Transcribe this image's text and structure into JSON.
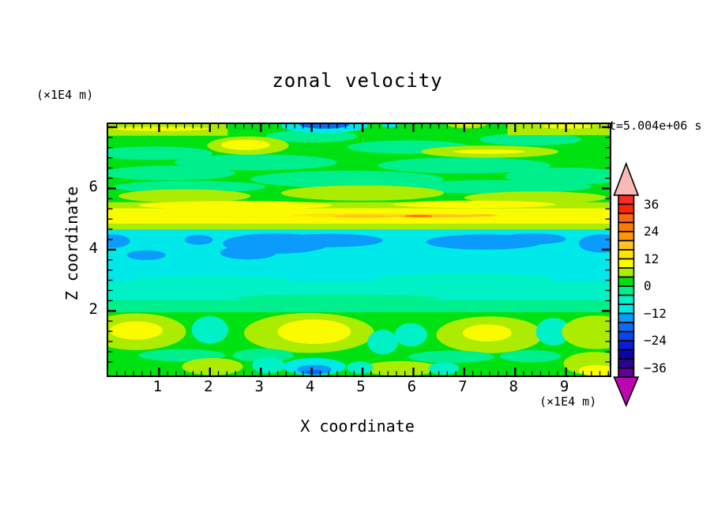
{
  "title": "zonal velocity",
  "annotations": {
    "time_label": "t=5.004e+06 s",
    "left_units_label": "(×1E4 m)",
    "bottom_units_label": "(×1E4 m)"
  },
  "axes": {
    "x": {
      "label": "X coordinate",
      "range": [
        0,
        9.86
      ],
      "major_ticks": [
        1,
        2,
        3,
        4,
        5,
        6,
        7,
        8,
        9
      ],
      "tick_labels": [
        "1",
        "2",
        "3",
        "4",
        "5",
        "6",
        "7",
        "8",
        "9"
      ],
      "minor_interval": 0.1666667
    },
    "z": {
      "label": "Z coordinate",
      "range": [
        -0.11,
        8.1
      ],
      "major_ticks": [
        2,
        4,
        6,
        8
      ],
      "tick_labels": [
        "2",
        "4",
        "6"
      ],
      "labeled_values": [
        2,
        4,
        6
      ],
      "minor_interval": 0.3333333
    }
  },
  "colorbar": {
    "tick_labels": [
      "36",
      "24",
      "12",
      "0",
      "−12",
      "−24",
      "−36"
    ],
    "over_arrow_color": "#F9B8B6",
    "under_arrow_color": "#BC06B4",
    "levels_top_to_bottom": [
      {
        "range": "36..40",
        "color": "#F92B22"
      },
      {
        "range": "32..36",
        "color": "#FD2800"
      },
      {
        "range": "28..32",
        "color": "#FF640E"
      },
      {
        "range": "24..28",
        "color": "#FF7B00"
      },
      {
        "range": "20..24",
        "color": "#FF9800"
      },
      {
        "range": "16..20",
        "color": "#FFC51E"
      },
      {
        "range": "12..16",
        "color": "#FFE400"
      },
      {
        "range": "8..12",
        "color": "#FBFB00"
      },
      {
        "range": "4..8",
        "color": "#ACEC00"
      },
      {
        "range": "0..4",
        "color": "#00E112"
      },
      {
        "range": "-4..0",
        "color": "#00EF8D"
      },
      {
        "range": "-8..-4",
        "color": "#00F1C6"
      },
      {
        "range": "-12..-8",
        "color": "#00E9E9"
      },
      {
        "range": "-16..-12",
        "color": "#0A9BFB"
      },
      {
        "range": "-20..-16",
        "color": "#0B6CF3"
      },
      {
        "range": "-24..-20",
        "color": "#0845EA"
      },
      {
        "range": "-28..-24",
        "color": "#0A1DD5"
      },
      {
        "range": "-32..-28",
        "color": "#0A04AE"
      },
      {
        "range": "-36..-32",
        "color": "#2B0390"
      },
      {
        "range": "-40..-36",
        "color": "#5E0292"
      }
    ]
  },
  "chart_data": {
    "type": "heatmap",
    "subtype": "filled-contour tone plot",
    "title": "zonal velocity",
    "xlabel": "X coordinate (×1E4 m)",
    "ylabel": "Z coordinate (×1E4 m)",
    "time_annotation": "t=5.004e+06 s",
    "x_range": [
      0,
      9.86
    ],
    "z_range": [
      -0.11,
      8.1
    ],
    "contour_interval": 4,
    "value_range_shown": [
      -40,
      40
    ],
    "bands_top_to_bottom": [
      {
        "z": "5.9-8.1",
        "value": "0..4 (green) with -4..0 streaks; 4..12 patches near z≈7.4 and along top edge; small -12..-20 blue spot at top centre x≈4.2"
      },
      {
        "z": "4.7-5.9",
        "value": "4..16 chartreuse/yellow jet band with 16..24 orange streaks near z≈5.1"
      },
      {
        "z": "2.9-4.7",
        "value": "-12..-8 cyan band with -16..-12 blue blobs near z≈4.2"
      },
      {
        "z": "2.0-2.9",
        "value": "-8..0 turquoise to spring-green transition"
      },
      {
        "z": "0-2.0",
        "value": "green with cells: 4..12 chartreuse/yellow cores at x≈0.5,4,7.5,9.6 and -8..-4 turquoise troughs; -12..-20 blue spot at bottom x≈4"
      }
    ],
    "palette": {
      "green": {
        "color": "#00E112",
        "value": "0..4"
      },
      "spring": {
        "color": "#00EF8D",
        "value": "-4..0"
      },
      "turq": {
        "color": "#00F1C6",
        "value": "-8..-4"
      },
      "cyan": {
        "color": "#00E9E9",
        "value": "-12..-8"
      },
      "blue": {
        "color": "#0A9BFB",
        "value": "-16..-12"
      },
      "dblue": {
        "color": "#0B6CF3",
        "value": "-20..-16"
      },
      "chart": {
        "color": "#ACEC00",
        "value": "4..8"
      },
      "yellow": {
        "color": "#FBFB00",
        "value": "8..12"
      },
      "lemon": {
        "color": "#FFE400",
        "value": "12..16"
      },
      "amber": {
        "color": "#FFC51E",
        "value": "16..20"
      },
      "redor": {
        "color": "#FF640E",
        "value": "28..32"
      }
    },
    "layers": [
      {
        "s": "r",
        "x": 0,
        "z": 8.1,
        "w": 9.86,
        "h": 8.21,
        "c": "green"
      },
      {
        "s": "e",
        "x": 0.9,
        "z": 7.15,
        "rx": 1.15,
        "rz": 0.22,
        "c": "spring"
      },
      {
        "s": "e",
        "x": 2.9,
        "z": 6.85,
        "rx": 1.6,
        "rz": 0.26,
        "c": "spring"
      },
      {
        "s": "e",
        "x": 1.2,
        "z": 6.5,
        "rx": 1.3,
        "rz": 0.24,
        "c": "spring"
      },
      {
        "s": "e",
        "x": 4.7,
        "z": 6.3,
        "rx": 1.9,
        "rz": 0.28,
        "c": "spring"
      },
      {
        "s": "e",
        "x": 7.0,
        "z": 6.75,
        "rx": 1.7,
        "rz": 0.26,
        "c": "spring"
      },
      {
        "s": "e",
        "x": 9.0,
        "z": 6.4,
        "rx": 1.2,
        "rz": 0.28,
        "c": "spring"
      },
      {
        "s": "e",
        "x": 5.9,
        "z": 7.35,
        "rx": 1.2,
        "rz": 0.22,
        "c": "spring"
      },
      {
        "s": "e",
        "x": 8.3,
        "z": 7.6,
        "rx": 1.0,
        "rz": 0.2,
        "c": "spring"
      },
      {
        "s": "e",
        "x": 1.6,
        "z": 6.05,
        "rx": 1.5,
        "rz": 0.2,
        "c": "spring"
      },
      {
        "s": "e",
        "x": 7.6,
        "z": 6.05,
        "rx": 1.9,
        "rz": 0.22,
        "c": "spring"
      },
      {
        "s": "e",
        "x": 4.0,
        "z": 7.7,
        "rx": 0.9,
        "rz": 0.2,
        "c": "spring"
      },
      {
        "s": "r",
        "x": 0,
        "z": 8.1,
        "w": 2.35,
        "h": 0.38,
        "c": "chart"
      },
      {
        "s": "e",
        "x": 1.05,
        "z": 7.95,
        "rx": 0.95,
        "rz": 0.07,
        "c": "yellow"
      },
      {
        "s": "r",
        "x": 7.85,
        "z": 8.1,
        "w": 2.01,
        "h": 0.36,
        "c": "chart"
      },
      {
        "s": "e",
        "x": 9.05,
        "z": 8.02,
        "rx": 0.5,
        "rz": 0.07,
        "c": "yellow"
      },
      {
        "s": "e",
        "x": 7.05,
        "z": 8.08,
        "rx": 0.38,
        "rz": 0.12,
        "c": "chart"
      },
      {
        "s": "e",
        "x": 7.03,
        "z": 8.1,
        "rx": 0.2,
        "rz": 0.06,
        "c": "yellow"
      },
      {
        "s": "e",
        "x": 2.75,
        "z": 7.4,
        "rx": 0.8,
        "rz": 0.3,
        "c": "chart"
      },
      {
        "s": "e",
        "x": 2.7,
        "z": 7.42,
        "rx": 0.48,
        "rz": 0.17,
        "c": "yellow"
      },
      {
        "s": "e",
        "x": 7.5,
        "z": 7.2,
        "rx": 1.35,
        "rz": 0.2,
        "c": "chart"
      },
      {
        "s": "e",
        "x": 7.5,
        "z": 7.2,
        "rx": 0.7,
        "rz": 0.07,
        "c": "yellow"
      },
      {
        "s": "e",
        "x": 4.25,
        "z": 8.05,
        "rx": 0.85,
        "rz": 0.24,
        "c": "cyan"
      },
      {
        "s": "e",
        "x": 4.25,
        "z": 8.1,
        "rx": 0.5,
        "rz": 0.15,
        "c": "dblue"
      },
      {
        "s": "e",
        "x": 5.55,
        "z": 8.07,
        "rx": 0.16,
        "rz": 0.08,
        "c": "cyan"
      },
      {
        "s": "e",
        "x": 1.5,
        "z": 5.75,
        "rx": 1.3,
        "rz": 0.22,
        "c": "chart"
      },
      {
        "s": "e",
        "x": 5.0,
        "z": 5.85,
        "rx": 1.6,
        "rz": 0.25,
        "c": "chart"
      },
      {
        "s": "e",
        "x": 8.4,
        "z": 5.7,
        "rx": 1.4,
        "rz": 0.2,
        "c": "chart"
      },
      {
        "s": "r",
        "x": 0,
        "z": 5.55,
        "w": 9.86,
        "h": 0.9,
        "c": "chart"
      },
      {
        "s": "e",
        "x": 2.5,
        "z": 5.45,
        "rx": 1.9,
        "rz": 0.14,
        "c": "yellow"
      },
      {
        "s": "e",
        "x": 7.2,
        "z": 5.48,
        "rx": 1.6,
        "rz": 0.12,
        "c": "yellow"
      },
      {
        "s": "r",
        "x": 0,
        "z": 5.35,
        "w": 9.86,
        "h": 0.5,
        "c": "yellow"
      },
      {
        "s": "e",
        "x": 5.3,
        "z": 5.12,
        "rx": 1.7,
        "rz": 0.07,
        "c": "lemon"
      },
      {
        "s": "e",
        "x": 5.0,
        "z": 5.09,
        "rx": 0.6,
        "rz": 0.05,
        "c": "amber"
      },
      {
        "s": "e",
        "x": 6.5,
        "z": 5.1,
        "rx": 0.95,
        "rz": 0.05,
        "c": "amber"
      },
      {
        "s": "e",
        "x": 6.1,
        "z": 5.1,
        "rx": 0.28,
        "rz": 0.035,
        "c": "redor"
      },
      {
        "s": "e",
        "x": 7.35,
        "z": 5.12,
        "rx": 0.3,
        "rz": 0.04,
        "c": "amber"
      },
      {
        "s": "r",
        "x": 0,
        "z": 4.66,
        "w": 9.86,
        "h": 1.72,
        "c": "cyan"
      },
      {
        "s": "e",
        "x": 2.0,
        "z": 2.98,
        "rx": 1.6,
        "rz": 0.16,
        "c": "turq"
      },
      {
        "s": "e",
        "x": 7.0,
        "z": 3.05,
        "rx": 1.8,
        "rz": 0.18,
        "c": "turq"
      },
      {
        "s": "r",
        "x": 0,
        "z": 2.94,
        "w": 9.86,
        "h": 0.6,
        "c": "turq"
      },
      {
        "s": "r",
        "x": 0,
        "z": 2.34,
        "w": 9.86,
        "h": 0.38,
        "c": "spring"
      },
      {
        "s": "e",
        "x": 4.5,
        "z": 2.42,
        "rx": 2.0,
        "rz": 0.12,
        "c": "spring"
      },
      {
        "s": "e",
        "x": 0.08,
        "z": 4.28,
        "rx": 0.35,
        "rz": 0.22,
        "c": "blue"
      },
      {
        "s": "e",
        "x": 0.75,
        "z": 3.82,
        "rx": 0.38,
        "rz": 0.16,
        "c": "blue"
      },
      {
        "s": "e",
        "x": 1.78,
        "z": 4.32,
        "rx": 0.28,
        "rz": 0.16,
        "c": "blue"
      },
      {
        "s": "e",
        "x": 3.3,
        "z": 4.2,
        "rx": 1.05,
        "rz": 0.33,
        "c": "blue"
      },
      {
        "s": "e",
        "x": 4.35,
        "z": 4.3,
        "rx": 1.05,
        "rz": 0.22,
        "c": "blue"
      },
      {
        "s": "e",
        "x": 2.75,
        "z": 3.9,
        "rx": 0.55,
        "rz": 0.22,
        "c": "blue"
      },
      {
        "s": "e",
        "x": 7.4,
        "z": 4.25,
        "rx": 1.15,
        "rz": 0.25,
        "c": "blue"
      },
      {
        "s": "e",
        "x": 8.35,
        "z": 4.35,
        "rx": 0.65,
        "rz": 0.18,
        "c": "blue"
      },
      {
        "s": "e",
        "x": 9.7,
        "z": 4.2,
        "rx": 0.45,
        "rz": 0.3,
        "c": "blue"
      },
      {
        "s": "e",
        "x": 0.55,
        "z": 1.32,
        "rx": 0.98,
        "rz": 0.6,
        "c": "chart"
      },
      {
        "s": "e",
        "x": 0.55,
        "z": 1.36,
        "rx": 0.52,
        "rz": 0.3,
        "c": "yellow"
      },
      {
        "s": "e",
        "x": 2.0,
        "z": 1.38,
        "rx": 0.36,
        "rz": 0.45,
        "c": "turq"
      },
      {
        "s": "e",
        "x": 3.95,
        "z": 1.28,
        "rx": 1.28,
        "rz": 0.65,
        "c": "chart"
      },
      {
        "s": "e",
        "x": 4.05,
        "z": 1.32,
        "rx": 0.72,
        "rz": 0.4,
        "c": "yellow"
      },
      {
        "s": "e",
        "x": 5.4,
        "z": 0.98,
        "rx": 0.3,
        "rz": 0.4,
        "c": "turq"
      },
      {
        "s": "e",
        "x": 5.95,
        "z": 1.22,
        "rx": 0.32,
        "rz": 0.38,
        "c": "turq"
      },
      {
        "s": "e",
        "x": 7.5,
        "z": 1.22,
        "rx": 1.05,
        "rz": 0.6,
        "c": "chart"
      },
      {
        "s": "e",
        "x": 7.45,
        "z": 1.28,
        "rx": 0.48,
        "rz": 0.28,
        "c": "yellow"
      },
      {
        "s": "e",
        "x": 8.75,
        "z": 1.32,
        "rx": 0.34,
        "rz": 0.45,
        "c": "turq"
      },
      {
        "s": "e",
        "x": 9.6,
        "z": 1.3,
        "rx": 0.68,
        "rz": 0.55,
        "c": "chart"
      },
      {
        "s": "e",
        "x": 1.45,
        "z": 0.55,
        "rx": 0.85,
        "rz": 0.2,
        "c": "spring"
      },
      {
        "s": "e",
        "x": 3.05,
        "z": 0.55,
        "rx": 0.6,
        "rz": 0.22,
        "c": "spring"
      },
      {
        "s": "e",
        "x": 6.75,
        "z": 0.5,
        "rx": 0.85,
        "rz": 0.2,
        "c": "spring"
      },
      {
        "s": "e",
        "x": 8.3,
        "z": 0.52,
        "rx": 0.6,
        "rz": 0.2,
        "c": "spring"
      },
      {
        "s": "e",
        "x": 2.05,
        "z": 0.18,
        "rx": 0.6,
        "rz": 0.28,
        "c": "chart"
      },
      {
        "s": "e",
        "x": 5.75,
        "z": 0.12,
        "rx": 0.75,
        "rz": 0.24,
        "c": "chart"
      },
      {
        "s": "e",
        "x": 9.55,
        "z": 0.28,
        "rx": 0.6,
        "rz": 0.38,
        "c": "chart"
      },
      {
        "s": "e",
        "x": 9.6,
        "z": 0.05,
        "rx": 0.35,
        "rz": 0.18,
        "c": "yellow"
      },
      {
        "s": "e",
        "x": 3.15,
        "z": 0.22,
        "rx": 0.32,
        "rz": 0.26,
        "c": "turq"
      },
      {
        "s": "e",
        "x": 4.95,
        "z": 0.15,
        "rx": 0.26,
        "rz": 0.2,
        "c": "turq"
      },
      {
        "s": "e",
        "x": 6.6,
        "z": 0.12,
        "rx": 0.3,
        "rz": 0.2,
        "c": "turq"
      },
      {
        "s": "e",
        "x": 4.05,
        "z": 0.18,
        "rx": 0.62,
        "rz": 0.28,
        "c": "cyan"
      },
      {
        "s": "e",
        "x": 4.05,
        "z": 0.08,
        "rx": 0.34,
        "rz": 0.16,
        "c": "blue"
      },
      {
        "s": "e",
        "x": 4.05,
        "z": 0.0,
        "rx": 0.17,
        "rz": 0.08,
        "c": "dblue"
      }
    ]
  }
}
